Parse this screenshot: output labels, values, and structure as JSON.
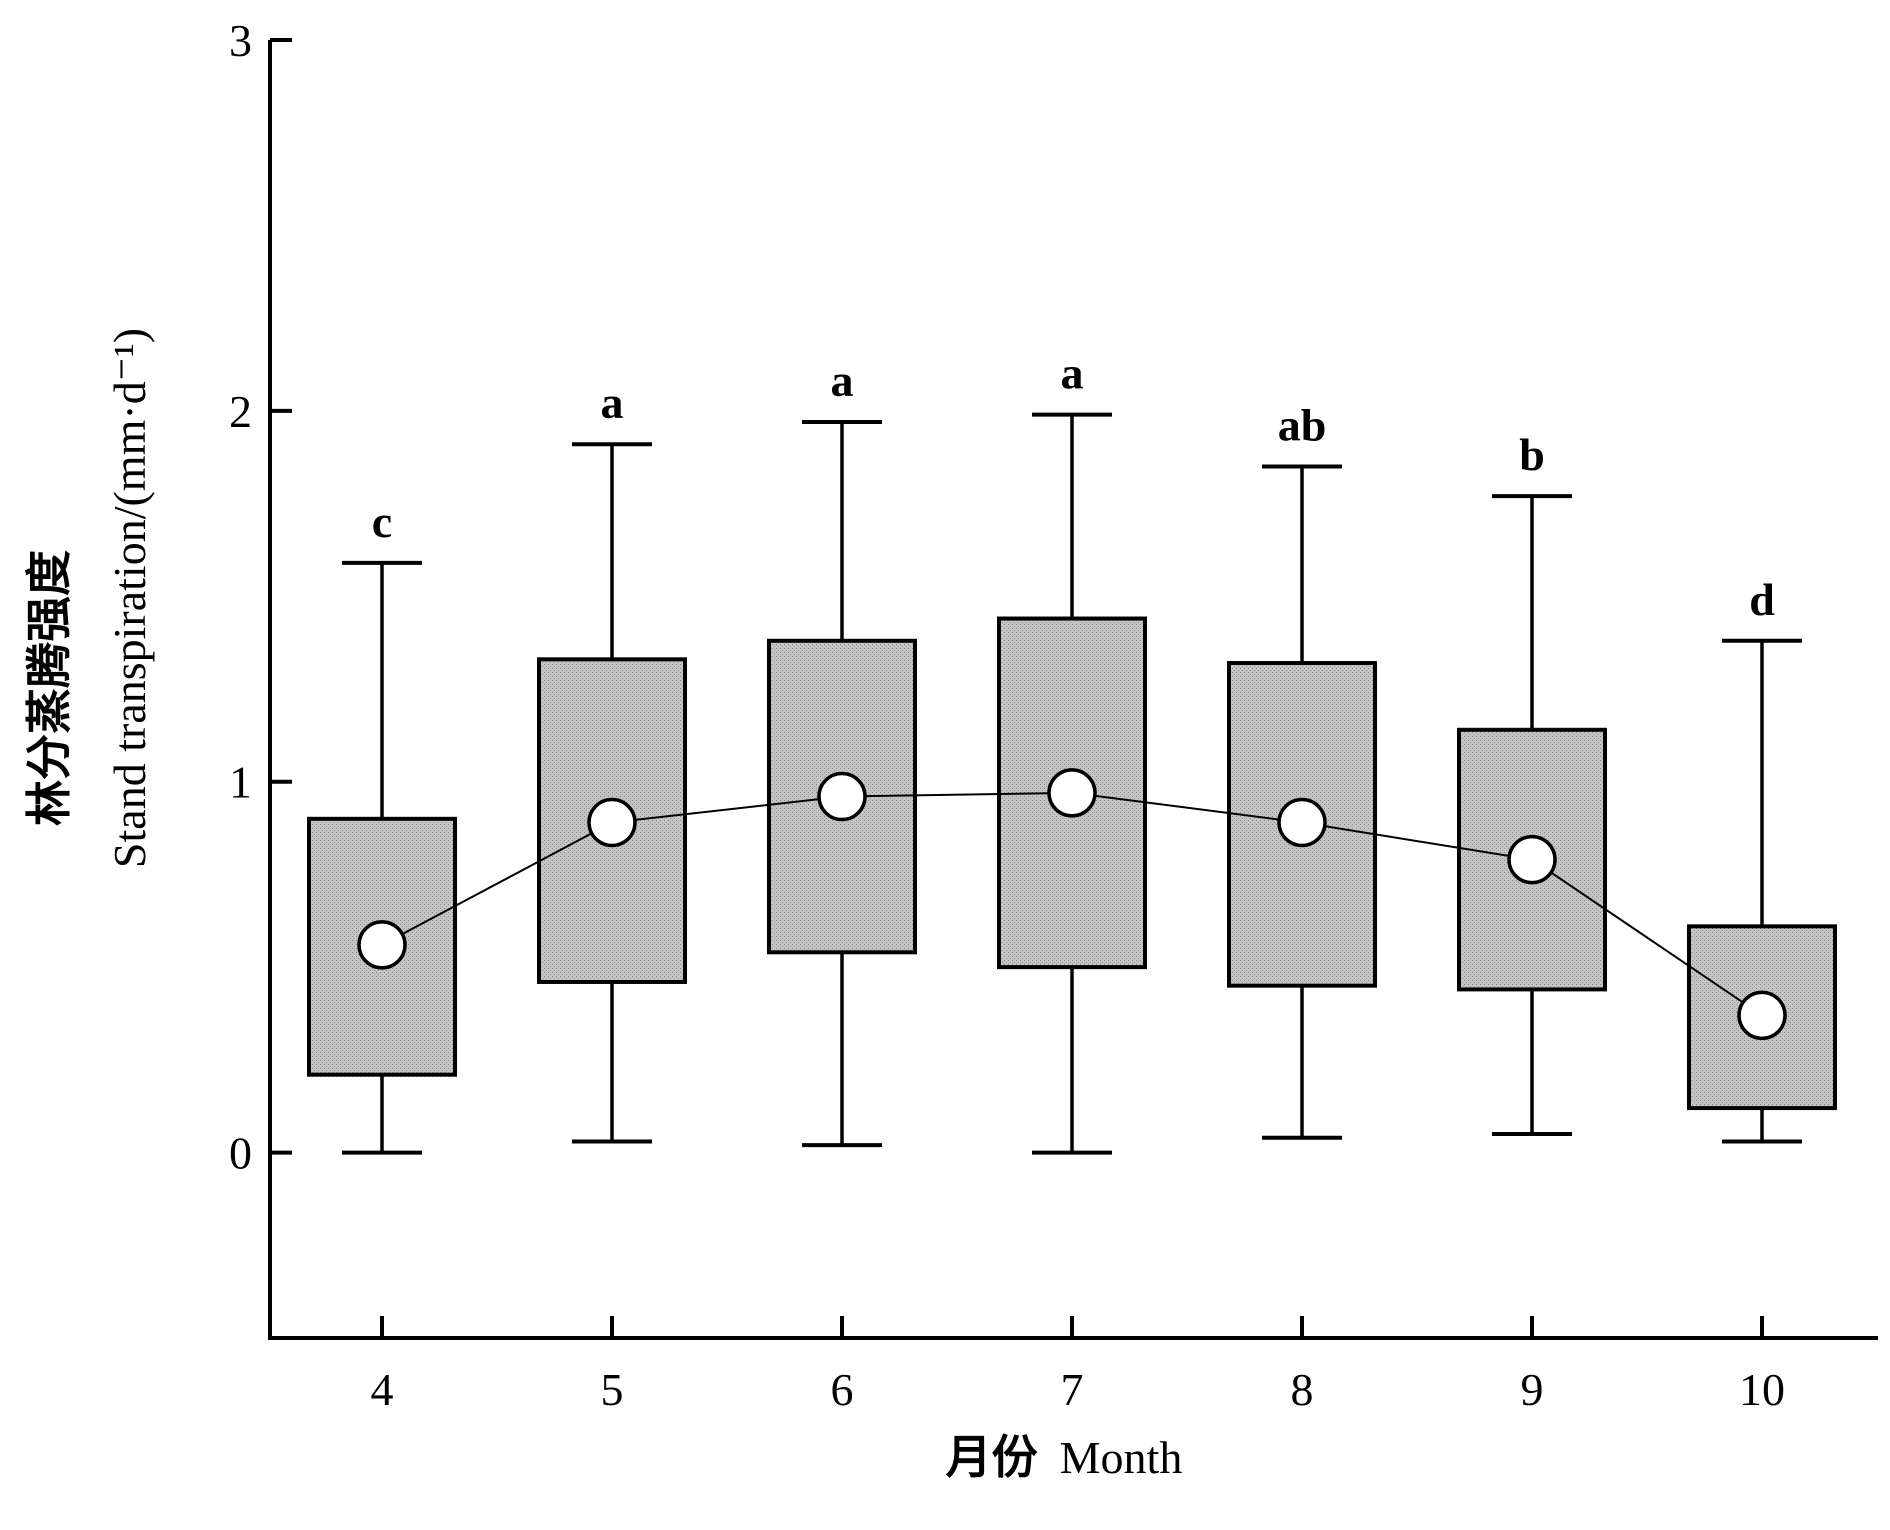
{
  "chart_data": {
    "type": "box",
    "title": "",
    "xlabel_cn": "月份",
    "xlabel_en": "Month",
    "ylabel_cn": "林分蒸腾强度",
    "ylabel_en": "Stand transpiration/(mm·d⁻¹)",
    "ylim": [
      -0.5,
      3
    ],
    "yticks": [
      0,
      1,
      2,
      3
    ],
    "categories": [
      "4",
      "5",
      "6",
      "7",
      "8",
      "9",
      "10"
    ],
    "boxes": [
      {
        "month": "4",
        "min": 0.0,
        "q1": 0.21,
        "q3": 0.9,
        "max": 1.59,
        "mean": 0.56,
        "letter": "c"
      },
      {
        "month": "5",
        "min": 0.03,
        "q1": 0.46,
        "q3": 1.33,
        "max": 1.91,
        "mean": 0.89,
        "letter": "a"
      },
      {
        "month": "6",
        "min": 0.02,
        "q1": 0.54,
        "q3": 1.38,
        "max": 1.97,
        "mean": 0.96,
        "letter": "a"
      },
      {
        "month": "7",
        "min": 0.0,
        "q1": 0.5,
        "q3": 1.44,
        "max": 1.99,
        "mean": 0.97,
        "letter": "a"
      },
      {
        "month": "8",
        "min": 0.04,
        "q1": 0.45,
        "q3": 1.32,
        "max": 1.85,
        "mean": 0.89,
        "letter": "ab"
      },
      {
        "month": "9",
        "min": 0.05,
        "q1": 0.44,
        "q3": 1.14,
        "max": 1.77,
        "mean": 0.79,
        "letter": "b"
      },
      {
        "month": "10",
        "min": 0.03,
        "q1": 0.12,
        "q3": 0.61,
        "max": 1.38,
        "mean": 0.37,
        "letter": "d"
      }
    ],
    "colors": {
      "box_fill": "#bdbdbd",
      "stroke": "#000000",
      "mean_marker": "#ffffff"
    }
  }
}
